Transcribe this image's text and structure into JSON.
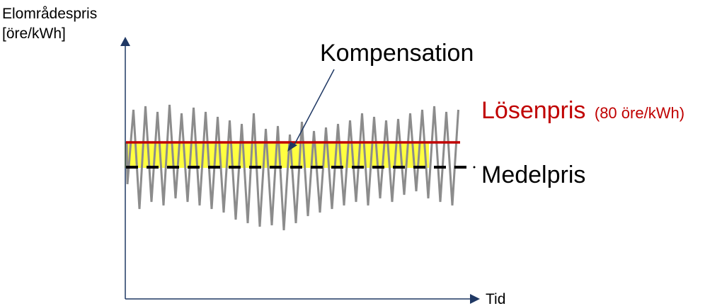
{
  "y_axis_label_line1": "Elområdespris",
  "y_axis_label_line2": "[öre/kWh]",
  "x_axis_label": "Tid",
  "compensation_label": "Kompensation",
  "strike_price_label": "Lösenpris",
  "strike_price_note": "(80 öre/kWh)",
  "average_price_label": "Medelpris",
  "colors": {
    "strike_price_line": "#c00000",
    "average_price_line": "#000000",
    "compensation_band": "#ffff00",
    "price_curve": "#8c8c8c",
    "axes": "#1f3864"
  }
}
